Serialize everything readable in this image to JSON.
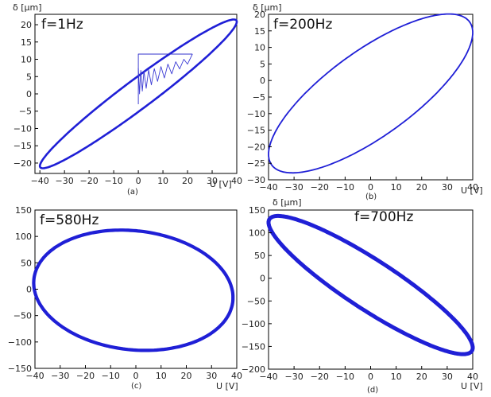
{
  "chart_data": [
    {
      "type": "line",
      "panel_label": "(a)",
      "annotation": "f=1Hz",
      "ylabel": "δ [μm]",
      "xlabel": "U [V]",
      "xlim": [
        -42,
        40
      ],
      "ylim": [
        -23,
        23
      ],
      "xticks": [
        -40,
        -30,
        -20,
        -10,
        0,
        10,
        20,
        30,
        40
      ],
      "yticks": [
        -20,
        -15,
        -10,
        -5,
        0,
        5,
        10,
        15,
        20
      ],
      "grid": false,
      "series": [
        {
          "kind": "loop",
          "center": [
            0,
            0
          ],
          "x_amplitude": 40,
          "y_amplitude": 21.5,
          "phase_deg": 14,
          "color": "#1f1fd6",
          "line_width": 2.6
        },
        {
          "kind": "polyline",
          "color": "#3333cc",
          "line_width": 0.9,
          "points": [
            [
              0,
              -3
            ],
            [
              0,
              11.5
            ],
            [
              22,
              11.5
            ]
          ]
        },
        {
          "kind": "polyline",
          "color": "#3b3bd4",
          "line_width": 0.9,
          "points": [
            [
              0,
              7.5
            ],
            [
              0.5,
              0
            ],
            [
              1,
              6.8
            ],
            [
              1.6,
              0.8
            ],
            [
              2.3,
              6.6
            ],
            [
              3.2,
              1.6
            ],
            [
              4.2,
              6.9
            ],
            [
              5.3,
              2.6
            ],
            [
              6.5,
              7.3
            ],
            [
              7.8,
              3.6
            ],
            [
              9.2,
              7.9
            ],
            [
              10.6,
              4.6
            ],
            [
              12,
              8.6
            ],
            [
              13.6,
              5.8
            ],
            [
              15.2,
              9.3
            ],
            [
              16.8,
              7.2
            ],
            [
              18.5,
              10
            ],
            [
              20,
              8.6
            ],
            [
              22,
              11.5
            ]
          ]
        }
      ]
    },
    {
      "type": "line",
      "panel_label": "(b)",
      "annotation": "f=200Hz",
      "ylabel": "δ [μm]",
      "xlabel": "U [V]",
      "xlim": [
        -40,
        40
      ],
      "ylim": [
        -30,
        20
      ],
      "xticks": [
        -40,
        -30,
        -20,
        -10,
        0,
        10,
        20,
        30,
        40
      ],
      "yticks": [
        -30,
        -25,
        -20,
        -15,
        -10,
        -5,
        0,
        5,
        10,
        15,
        20
      ],
      "grid": false,
      "series": [
        {
          "kind": "loop",
          "center": [
            0,
            -3.9
          ],
          "x_amplitude": 40,
          "y_amplitude": 24,
          "phase_deg": 40,
          "color": "#1f1fd6",
          "line_width": 1.8
        }
      ]
    },
    {
      "type": "line",
      "panel_label": "(c)",
      "annotation": "f=580Hz",
      "ylabel": "",
      "xlabel": "U [V]",
      "xlim": [
        -40,
        40
      ],
      "ylim": [
        -150,
        150
      ],
      "xticks": [
        -40,
        -30,
        -20,
        -10,
        0,
        10,
        20,
        30,
        40
      ],
      "yticks": [
        -150,
        -100,
        -50,
        0,
        50,
        100,
        150
      ],
      "grid": false,
      "series": [
        {
          "kind": "loop",
          "center": [
            -1,
            -2
          ],
          "x_amplitude": 39.5,
          "y_amplitude": 114,
          "phase_deg": 97,
          "color": "#1f1fd6",
          "line_width": 4.2
        }
      ]
    },
    {
      "type": "line",
      "panel_label": "(d)",
      "annotation": "f=700Hz",
      "ylabel": "δ [μm]",
      "xlabel": "U [V]",
      "xlim": [
        -40,
        40
      ],
      "ylim": [
        -200,
        150
      ],
      "xticks": [
        -40,
        -30,
        -20,
        -10,
        0,
        10,
        20,
        30,
        40
      ],
      "yticks": [
        -200,
        -150,
        -100,
        -50,
        0,
        50,
        100,
        150
      ],
      "grid": false,
      "series": [
        {
          "kind": "loop",
          "center": [
            0,
            -15
          ],
          "x_amplitude": 40,
          "y_amplitude": 152,
          "phase_deg": 155,
          "color": "#1f1fd6",
          "line_width": 5
        }
      ]
    }
  ]
}
